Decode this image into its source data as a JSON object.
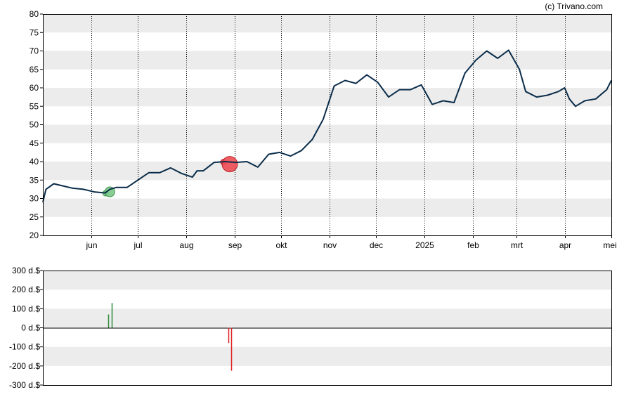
{
  "credit": "(c) Trivano.com",
  "colors": {
    "band": "#ececec",
    "line": "#0b2d4a",
    "buy": "#2e8b3a",
    "sell": "#e02020",
    "buy_marker": "#7cc98a",
    "sell_marker": "#ee4c55"
  },
  "chart_data": [
    {
      "type": "line",
      "title": "",
      "xlabel": "",
      "ylabel": "",
      "ylim": [
        20,
        80
      ],
      "yticks": [
        "80",
        "75",
        "70",
        "65",
        "60",
        "55",
        "50",
        "45",
        "40",
        "35",
        "30",
        "25",
        "20"
      ],
      "grid": "alternating horizontal bands, dotted vertical lines at month starts",
      "month_labels": [
        "jun",
        "jul",
        "aug",
        "sep",
        "okt",
        "nov",
        "dec",
        "2025",
        "feb",
        "mrt",
        "apr",
        "mei"
      ],
      "series": [
        {
          "x": [
            "2024-05-01",
            "2024-05-03",
            "2024-05-08",
            "2024-05-13",
            "2024-05-20",
            "2024-05-27",
            "2024-06-03",
            "2024-06-10",
            "2024-06-13",
            "2024-06-17",
            "2024-06-24",
            "2024-07-01",
            "2024-07-08",
            "2024-07-15",
            "2024-07-22",
            "2024-07-29",
            "2024-08-05",
            "2024-08-08",
            "2024-08-12",
            "2024-08-19",
            "2024-08-26",
            "2024-09-02",
            "2024-09-09",
            "2024-09-16",
            "2024-09-23",
            "2024-09-30",
            "2024-10-07",
            "2024-10-14",
            "2024-10-21",
            "2024-10-28",
            "2024-11-04",
            "2024-11-11",
            "2024-11-18",
            "2024-11-25",
            "2024-12-02",
            "2024-12-09",
            "2024-12-16",
            "2024-12-23",
            "2024-12-30",
            "2025-01-06",
            "2025-01-13",
            "2025-01-20",
            "2025-01-27",
            "2025-02-03",
            "2025-02-10",
            "2025-02-17",
            "2025-02-24",
            "2025-03-03",
            "2025-03-07",
            "2025-03-14",
            "2025-03-21",
            "2025-03-28",
            "2025-04-01",
            "2025-04-04",
            "2025-04-08",
            "2025-04-14",
            "2025-04-21",
            "2025-04-28",
            "2025-05-01"
          ],
          "values": [
            29,
            32.5,
            34,
            33.5,
            32.8,
            32.5,
            31.8,
            31.5,
            32.5,
            33,
            33,
            35,
            37,
            37,
            38.3,
            36.8,
            35.8,
            37.5,
            37.5,
            39.8,
            40,
            39.8,
            40,
            38.5,
            42,
            42.5,
            41.5,
            43,
            46,
            51.5,
            60.5,
            62,
            61.2,
            63.5,
            61.5,
            57.5,
            59.5,
            59.5,
            60.8,
            55.5,
            56.5,
            56,
            64,
            67.5,
            70,
            68,
            70.2,
            65,
            59,
            57.5,
            58,
            59,
            60,
            57,
            55,
            56.5,
            57,
            59.5,
            62
          ]
        }
      ],
      "signals": [
        {
          "date": "2024-06-13",
          "price": 31.8,
          "kind": "buy"
        },
        {
          "date": "2024-08-29",
          "price": 39.7,
          "kind": "sell"
        }
      ]
    },
    {
      "type": "bar",
      "title": "",
      "ylim": [
        -300,
        300
      ],
      "yticks": [
        "300 d.$",
        "200 d.$",
        "100 d.$",
        "0 d.$",
        "-100 d.$",
        "-200 d.$",
        "-300 d.$"
      ],
      "series": [
        {
          "x": [
            "2024-06-12",
            "2024-06-14",
            "2024-08-28",
            "2024-08-30"
          ],
          "values": [
            70,
            130,
            -80,
            -225
          ],
          "kinds": [
            "buy",
            "buy",
            "sell",
            "sell"
          ]
        }
      ]
    }
  ]
}
